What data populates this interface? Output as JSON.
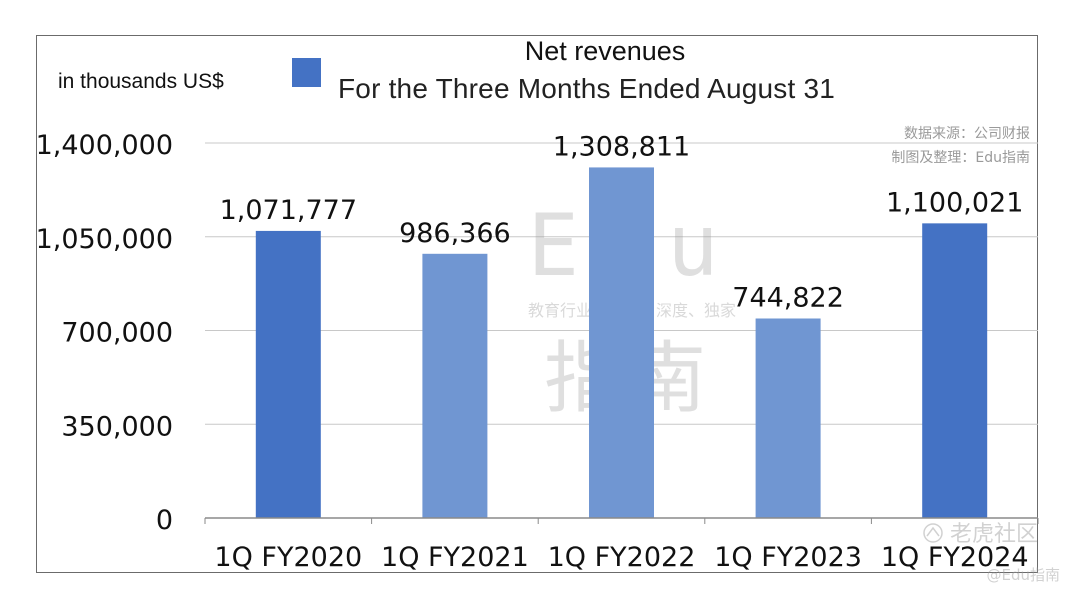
{
  "chart_data": {
    "type": "bar",
    "title": "Net revenues",
    "subtitle": "For the Three Months Ended August 31",
    "unit_label": "in thousands US$",
    "categories": [
      "1Q FY2020",
      "1Q FY2021",
      "1Q FY2022",
      "1Q FY2023",
      "1Q FY2024"
    ],
    "values": [
      1071777,
      986366,
      1308811,
      744822,
      1100021
    ],
    "value_labels": [
      "1,071,777",
      "986,366",
      "1,308,811",
      "744,822",
      "1,100,021"
    ],
    "yticks": [
      0,
      350000,
      700000,
      1050000,
      1400000
    ],
    "ytick_labels": [
      "0",
      "350,000",
      "700,000",
      "1,050,000",
      "1,400,000"
    ],
    "ylim": [
      0,
      1400000
    ],
    "grid": true,
    "bar_colors": [
      "#4472c4",
      "#7096d2",
      "#7096d2",
      "#7096d2",
      "#4472c4"
    ],
    "legend_color": "#4472c4"
  },
  "source_lines": [
    "数据来源：公司财报",
    "制图及整理：Edu指南"
  ],
  "watermark": {
    "center_big": "Edu",
    "center_tagline": "教育行业、前沿、深度、独家",
    "center_cn": "指南",
    "corner_logo": "老虎社区",
    "corner_handle": "@Edu指南"
  }
}
